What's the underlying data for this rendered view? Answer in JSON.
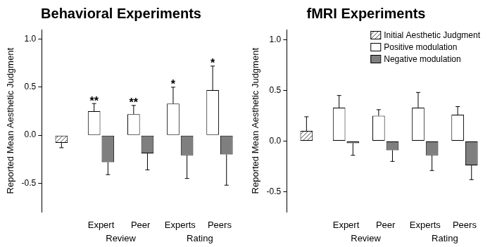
{
  "chart_data": [
    {
      "type": "bar",
      "title": "Behavioral Experiments",
      "y_label": "Reported Mean Aesthetic Judgment",
      "categories": [
        null,
        "Expert",
        "Peer",
        "Experts",
        "Peers"
      ],
      "category_groups": [
        {
          "label": "Review",
          "categories": [
            "Expert",
            "Peer"
          ]
        },
        {
          "label": "Rating",
          "categories": [
            "Experts",
            "Peers"
          ]
        }
      ],
      "series": [
        {
          "name": "Initial Aesthetic Judgment",
          "color": "#555555",
          "values": [
            -0.08,
            null,
            null,
            null,
            null
          ],
          "errors": [
            0.05,
            null,
            null,
            null,
            null
          ]
        },
        {
          "name": "Positive modulation",
          "color": "#ffffff",
          "values": [
            null,
            0.25,
            0.22,
            0.33,
            0.47
          ],
          "errors": [
            null,
            0.08,
            0.09,
            0.17,
            0.25
          ],
          "annotations": [
            null,
            "**",
            "**",
            "*",
            "*"
          ]
        },
        {
          "name": "Negative modulation",
          "color": "#7f7f7f",
          "values": [
            null,
            -0.28,
            -0.19,
            -0.21,
            -0.2
          ],
          "errors": [
            null,
            0.13,
            0.17,
            0.24,
            0.32
          ]
        }
      ],
      "ylim": [
        -0.8,
        1.1
      ],
      "yticks": [
        {
          "value": -0.5,
          "label": "-0.5"
        },
        {
          "value": 0,
          "label": "0.0"
        },
        {
          "value": 0.5,
          "label": "0.5"
        },
        {
          "value": 1,
          "label": "1.0"
        }
      ],
      "grid": false
    },
    {
      "type": "bar",
      "title": "fMRI Experiments",
      "y_label": "Reported Mean Aesthetic Judgment",
      "categories": [
        null,
        "Expert",
        "Peer",
        "Experts",
        "Peers"
      ],
      "category_groups": [
        {
          "label": "Review",
          "categories": [
            "Expert",
            "Peer"
          ]
        },
        {
          "label": "Rating",
          "categories": [
            "Experts",
            "Peers"
          ]
        }
      ],
      "series": [
        {
          "name": "Initial Aesthetic Judgment",
          "color": "#555555",
          "values": [
            0.1,
            null,
            null,
            null,
            null
          ],
          "errors": [
            0.14,
            null,
            null,
            null,
            null
          ]
        },
        {
          "name": "Positive modulation",
          "color": "#ffffff",
          "values": [
            null,
            0.33,
            0.25,
            0.33,
            0.26
          ],
          "errors": [
            null,
            0.12,
            0.06,
            0.15,
            0.08
          ]
        },
        {
          "name": "Negative modulation",
          "color": "#7f7f7f",
          "values": [
            null,
            -0.02,
            -0.09,
            -0.14,
            -0.24
          ],
          "errors": [
            null,
            0.12,
            0.11,
            0.15,
            0.14
          ]
        }
      ],
      "ylim": [
        -0.7,
        1.1
      ],
      "yticks": [
        {
          "value": -0.5,
          "label": "-0.5"
        },
        {
          "value": 0,
          "label": "0.0"
        },
        {
          "value": 0.5,
          "label": "0.5"
        },
        {
          "value": 1,
          "label": "1.0"
        }
      ],
      "grid": false,
      "legend": "upper right"
    }
  ]
}
